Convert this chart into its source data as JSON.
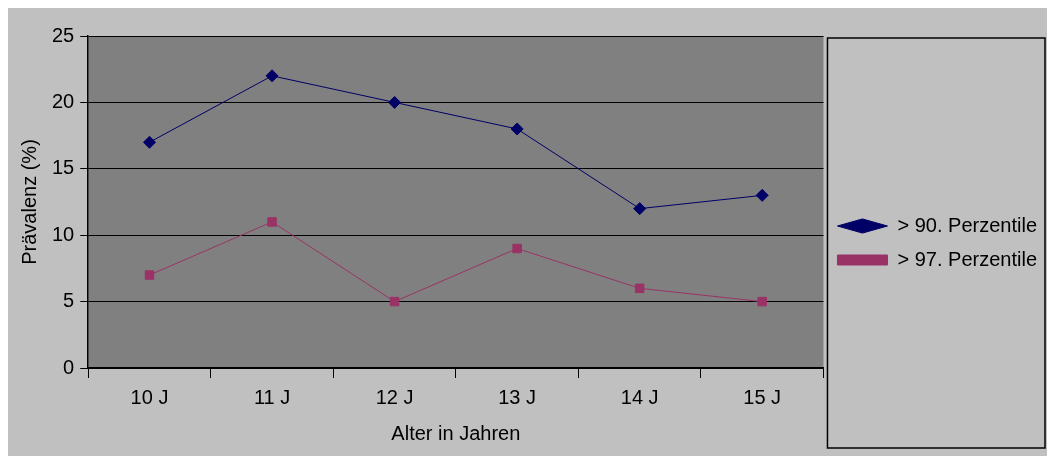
{
  "chart_data": {
    "type": "line",
    "xlabel": "Alter in Jahren",
    "ylabel": "Prävalenz (%)",
    "categories": [
      "10 J",
      "11 J",
      "12 J",
      "13 J",
      "14 J",
      "15 J"
    ],
    "series": [
      {
        "name": "> 90. Perzentile",
        "color": "#000066",
        "marker": "diamond",
        "values": [
          17,
          22,
          20,
          18,
          12,
          13
        ]
      },
      {
        "name": "> 97. Perzentile",
        "color": "#993366",
        "marker": "square",
        "values": [
          7,
          11,
          5,
          9,
          6,
          5
        ]
      }
    ],
    "ylim": [
      0,
      25
    ],
    "yticks": [
      0,
      5,
      10,
      15,
      20,
      25
    ],
    "grid": "y",
    "legend": "right"
  }
}
